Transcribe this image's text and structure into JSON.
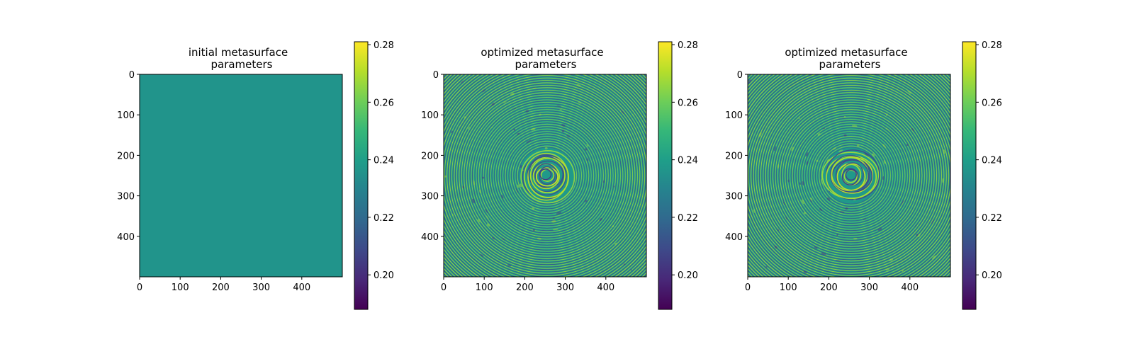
{
  "chart_data": [
    {
      "type": "heatmap",
      "title_lines": [
        "initial metasurface",
        "parameters"
      ],
      "pattern": "uniform",
      "uniform_value": 0.236,
      "x_ticks": [
        0,
        100,
        200,
        300,
        400
      ],
      "y_ticks": [
        0,
        100,
        200,
        300,
        400
      ],
      "xlim": [
        0,
        500
      ],
      "ylim": [
        500,
        0
      ],
      "colorbar": {
        "ticks": [
          0.2,
          0.22,
          0.24,
          0.26,
          0.28
        ],
        "range": [
          0.188,
          0.281
        ],
        "colormap": "viridis"
      }
    },
    {
      "type": "heatmap",
      "title_lines": [
        "optimized metasurface",
        "parameters"
      ],
      "pattern": "concentric-rings",
      "center": [
        255,
        250
      ],
      "x_ticks": [
        0,
        100,
        200,
        300,
        400
      ],
      "y_ticks": [
        0,
        100,
        200,
        300,
        400
      ],
      "xlim": [
        0,
        500
      ],
      "ylim": [
        500,
        0
      ],
      "colorbar": {
        "ticks": [
          0.2,
          0.22,
          0.24,
          0.26,
          0.28
        ],
        "range": [
          0.188,
          0.281
        ],
        "colormap": "viridis"
      }
    },
    {
      "type": "heatmap",
      "title_lines": [
        "optimized metasurface",
        "parameters"
      ],
      "pattern": "concentric-rings",
      "center": [
        255,
        250
      ],
      "x_ticks": [
        0,
        100,
        200,
        300,
        400
      ],
      "y_ticks": [
        0,
        100,
        200,
        300,
        400
      ],
      "xlim": [
        0,
        500
      ],
      "ylim": [
        500,
        0
      ],
      "colorbar": {
        "ticks": [
          0.2,
          0.22,
          0.24,
          0.26,
          0.28
        ],
        "range": [
          0.188,
          0.281
        ],
        "colormap": "viridis"
      }
    }
  ],
  "colors": {
    "viridis_stops": [
      "#440154",
      "#482878",
      "#3e4989",
      "#31688e",
      "#26828e",
      "#1f9e89",
      "#35b779",
      "#6ece58",
      "#b5de2b",
      "#fde725"
    ]
  }
}
